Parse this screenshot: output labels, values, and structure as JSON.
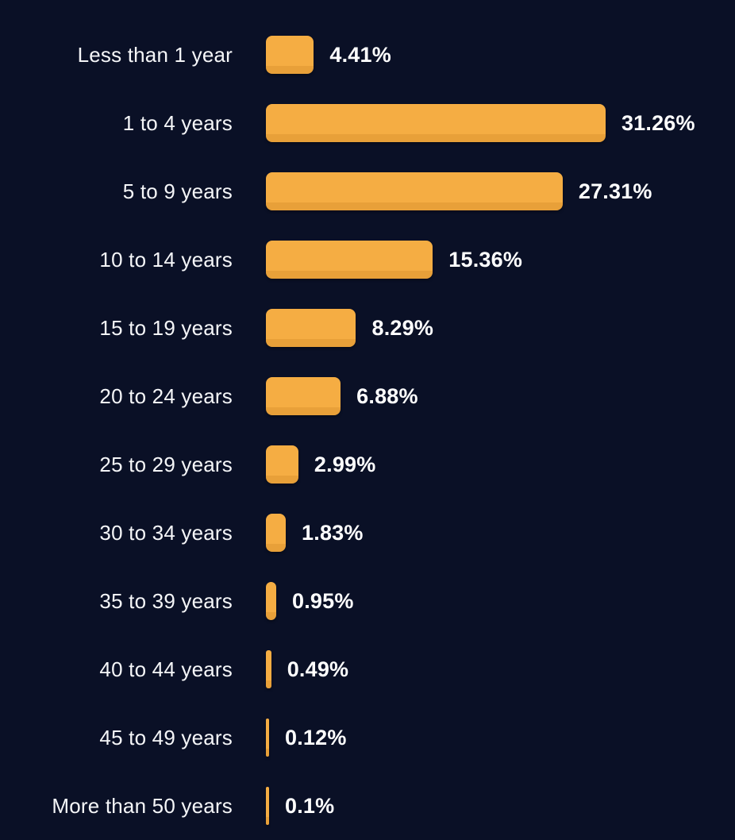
{
  "colors": {
    "background": "#0A1026",
    "bar_fill": "#F5AD43",
    "bar_bottom_shade": "#E8A039",
    "category_label_text": "#F5F6F8",
    "value_label_text": "#FFFFFF"
  },
  "chart_data": {
    "type": "bar",
    "orientation": "horizontal",
    "title": "",
    "xlabel": "",
    "ylabel": "",
    "xlim": [
      0,
      31.26
    ],
    "grid": false,
    "legend": false,
    "categories": [
      "Less than 1 year",
      "1 to 4 years",
      "5 to 9 years",
      "10 to 14 years",
      "15 to 19 years",
      "20 to 24 years",
      "25 to 29 years",
      "30 to 34 years",
      "35 to 39 years",
      "40 to 44 years",
      "45 to 49 years",
      "More than 50 years"
    ],
    "values": [
      4.41,
      31.26,
      27.31,
      15.36,
      8.29,
      6.88,
      2.99,
      1.83,
      0.95,
      0.49,
      0.12,
      0.1
    ],
    "value_labels": [
      "4.41%",
      "31.26%",
      "27.31%",
      "15.36%",
      "8.29%",
      "6.88%",
      "2.99%",
      "1.83%",
      "0.95%",
      "0.49%",
      "0.12%",
      "0.1%"
    ]
  }
}
